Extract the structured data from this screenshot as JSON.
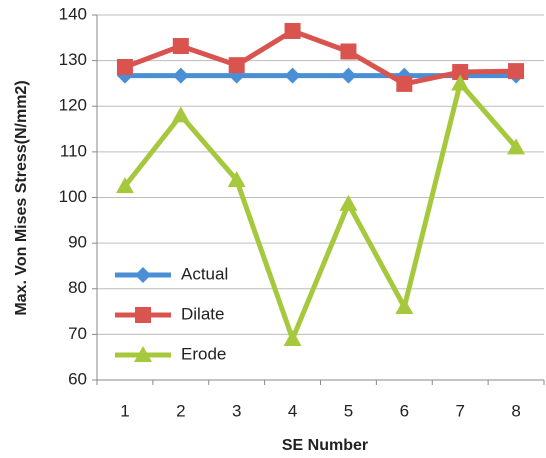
{
  "chart_data": {
    "type": "line",
    "x_label": "SE Number",
    "y_label": "Max. Von Mises Stress(N/mm2)",
    "categories": [
      1,
      2,
      3,
      4,
      5,
      6,
      7,
      8
    ],
    "series": [
      {
        "name": "Actual",
        "color": "#4a8fd6",
        "marker": "diamond",
        "values": [
          126.7,
          126.7,
          126.7,
          126.7,
          126.7,
          126.7,
          126.7,
          126.7
        ]
      },
      {
        "name": "Dilate",
        "color": "#d9534f",
        "marker": "square",
        "values": [
          128.6,
          133.2,
          129,
          136.5,
          132,
          124.9,
          127.5,
          127.7
        ]
      },
      {
        "name": "Erode",
        "color": "#a6c83c",
        "marker": "triangle",
        "values": [
          102.5,
          118,
          103.8,
          69,
          98.6,
          76,
          125,
          111
        ]
      }
    ],
    "ylim": [
      60,
      140
    ],
    "yticks": [
      60,
      70,
      80,
      90,
      100,
      110,
      120,
      130,
      140
    ],
    "grid": true,
    "legend_position": "left"
  }
}
